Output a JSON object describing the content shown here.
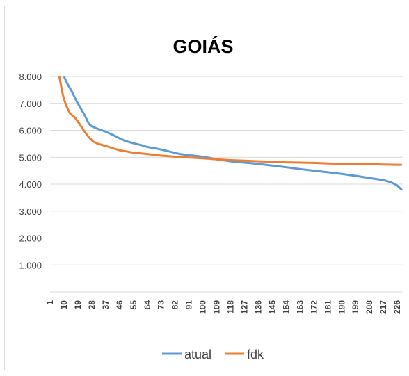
{
  "chart_data": {
    "type": "line",
    "title": "GOIÁS",
    "xlabel": "",
    "ylabel": "",
    "ylim": [
      0,
      8000
    ],
    "yticks": [
      {
        "value": 0,
        "label": "-"
      },
      {
        "value": 1000,
        "label": "1.000"
      },
      {
        "value": 2000,
        "label": "2.000"
      },
      {
        "value": 3000,
        "label": "3.000"
      },
      {
        "value": 4000,
        "label": "4.000"
      },
      {
        "value": 5000,
        "label": "5.000"
      },
      {
        "value": 6000,
        "label": "6.000"
      },
      {
        "value": 7000,
        "label": "7.000"
      },
      {
        "value": 8000,
        "label": "8.000"
      }
    ],
    "xlim": [
      1,
      230
    ],
    "xticks": [
      "1",
      "10",
      "19",
      "28",
      "37",
      "46",
      "55",
      "64",
      "73",
      "82",
      "91",
      "100",
      "109",
      "118",
      "127",
      "136",
      "145",
      "154",
      "163",
      "172",
      "181",
      "190",
      "199",
      "208",
      "217",
      "226"
    ],
    "grid": true,
    "legend": "bottom",
    "series": [
      {
        "name": "atual",
        "color": "#5b9bd5",
        "points": [
          [
            10,
            8000
          ],
          [
            12,
            7750
          ],
          [
            15,
            7450
          ],
          [
            18,
            7100
          ],
          [
            21,
            6800
          ],
          [
            24,
            6500
          ],
          [
            26,
            6250
          ],
          [
            28,
            6150
          ],
          [
            32,
            6050
          ],
          [
            37,
            5950
          ],
          [
            42,
            5820
          ],
          [
            46,
            5700
          ],
          [
            50,
            5600
          ],
          [
            55,
            5520
          ],
          [
            60,
            5450
          ],
          [
            64,
            5380
          ],
          [
            70,
            5320
          ],
          [
            75,
            5260
          ],
          [
            80,
            5190
          ],
          [
            85,
            5120
          ],
          [
            91,
            5080
          ],
          [
            97,
            5040
          ],
          [
            103,
            4990
          ],
          [
            109,
            4920
          ],
          [
            118,
            4850
          ],
          [
            127,
            4800
          ],
          [
            136,
            4750
          ],
          [
            145,
            4690
          ],
          [
            154,
            4630
          ],
          [
            163,
            4560
          ],
          [
            172,
            4500
          ],
          [
            181,
            4440
          ],
          [
            190,
            4380
          ],
          [
            199,
            4310
          ],
          [
            208,
            4230
          ],
          [
            217,
            4150
          ],
          [
            222,
            4070
          ],
          [
            226,
            3950
          ],
          [
            229,
            3780
          ]
        ]
      },
      {
        "name": "fdk",
        "color": "#ed7d31",
        "points": [
          [
            7,
            8000
          ],
          [
            8,
            7700
          ],
          [
            9,
            7400
          ],
          [
            10,
            7150
          ],
          [
            12,
            6850
          ],
          [
            14,
            6620
          ],
          [
            17,
            6480
          ],
          [
            20,
            6250
          ],
          [
            23,
            5980
          ],
          [
            26,
            5750
          ],
          [
            29,
            5580
          ],
          [
            32,
            5500
          ],
          [
            37,
            5420
          ],
          [
            42,
            5330
          ],
          [
            46,
            5260
          ],
          [
            50,
            5220
          ],
          [
            55,
            5170
          ],
          [
            60,
            5140
          ],
          [
            64,
            5120
          ],
          [
            70,
            5080
          ],
          [
            75,
            5050
          ],
          [
            82,
            5020
          ],
          [
            91,
            4990
          ],
          [
            100,
            4960
          ],
          [
            109,
            4920
          ],
          [
            118,
            4890
          ],
          [
            127,
            4870
          ],
          [
            136,
            4850
          ],
          [
            145,
            4830
          ],
          [
            154,
            4810
          ],
          [
            163,
            4800
          ],
          [
            172,
            4790
          ],
          [
            181,
            4770
          ],
          [
            190,
            4760
          ],
          [
            199,
            4750
          ],
          [
            208,
            4740
          ],
          [
            217,
            4730
          ],
          [
            226,
            4720
          ],
          [
            229,
            4720
          ]
        ]
      }
    ]
  }
}
